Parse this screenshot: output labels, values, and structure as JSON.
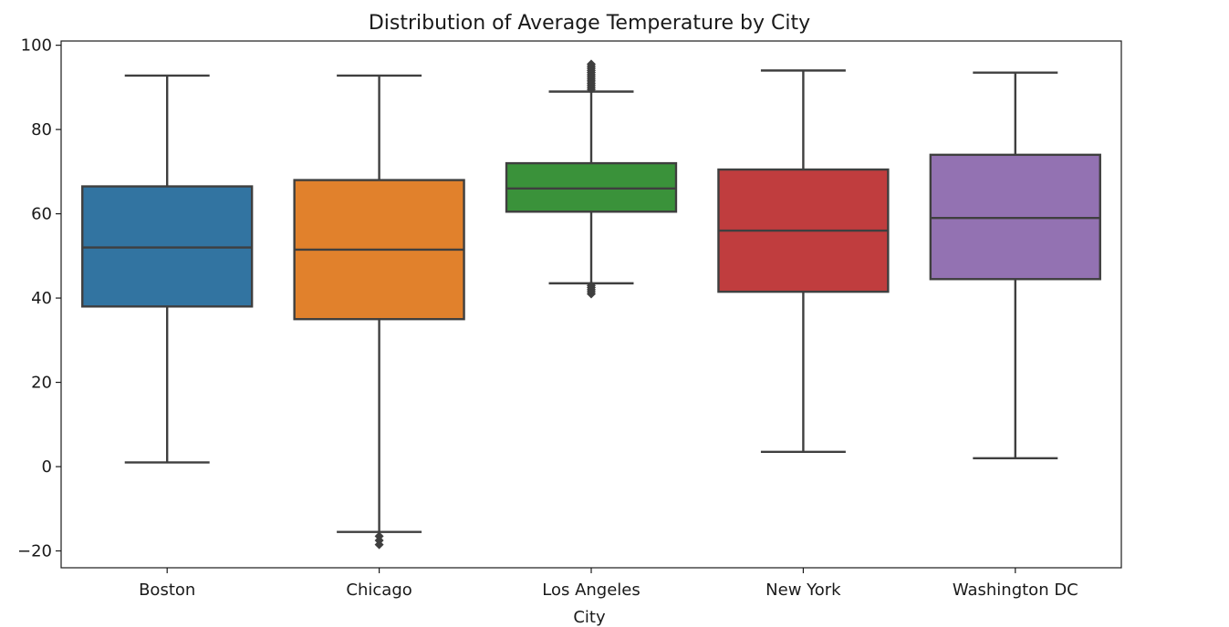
{
  "chart_data": {
    "type": "box",
    "title": "Distribution of Average Temperature by City",
    "xlabel": "City",
    "ylabel": "",
    "ylim": [
      -24,
      101
    ],
    "yticks": [
      -20,
      0,
      20,
      40,
      60,
      80,
      100
    ],
    "yticks_labels": [
      "−20",
      "0",
      "20",
      "40",
      "60",
      "80",
      "100"
    ],
    "grid": false,
    "categories": [
      "Boston",
      "Chicago",
      "Los Angeles",
      "New York",
      "Washington DC"
    ],
    "colors": [
      "#3274a1",
      "#e1812c",
      "#3a923a",
      "#c03d3e",
      "#9372b2"
    ],
    "boxes": [
      {
        "name": "Boston",
        "whisker_low": 1,
        "q1": 38,
        "median": 52,
        "q3": 66.5,
        "whisker_high": 92.8,
        "outliers": []
      },
      {
        "name": "Chicago",
        "whisker_low": -15.5,
        "q1": 35,
        "median": 51.5,
        "q3": 68,
        "whisker_high": 92.8,
        "outliers": [
          -16.5,
          -17.5,
          -18.5
        ]
      },
      {
        "name": "Los Angeles",
        "whisker_low": 43.5,
        "q1": 60.5,
        "median": 66,
        "q3": 72,
        "whisker_high": 89,
        "outliers": [
          41,
          41.5,
          42,
          42.5,
          43,
          89.5,
          90,
          90.5,
          91,
          91.5,
          92,
          92.5,
          93,
          93.5,
          94,
          94.5,
          95,
          95.5
        ]
      },
      {
        "name": "New York",
        "whisker_low": 3.5,
        "q1": 41.5,
        "median": 56,
        "q3": 70.5,
        "whisker_high": 94,
        "outliers": []
      },
      {
        "name": "Washington DC",
        "whisker_low": 2,
        "q1": 44.5,
        "median": 59,
        "q3": 74,
        "whisker_high": 93.5,
        "outliers": []
      }
    ]
  }
}
